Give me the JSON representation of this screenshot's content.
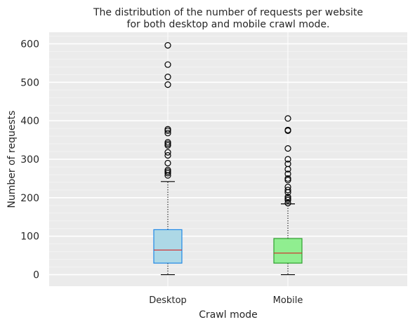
{
  "chart_data": {
    "type": "box",
    "title_lines": [
      "The distribution of the number of requests per website",
      "for both desktop and mobile crawl mode."
    ],
    "xlabel": "Crawl mode",
    "ylabel": "Number of requests",
    "ylim": [
      -30,
      630
    ],
    "yticks": [
      0,
      100,
      200,
      300,
      400,
      500,
      600
    ],
    "grid": true,
    "minor_grid": true,
    "categories": [
      "Desktop",
      "Mobile"
    ],
    "series": [
      {
        "category": "Desktop",
        "whisker_low": 0,
        "q1": 30,
        "median": 64,
        "q3": 117,
        "whisker_high": 242,
        "outliers": [
          596,
          546,
          514,
          494,
          378,
          374,
          368,
          344,
          340,
          336,
          318,
          310,
          290,
          272,
          268,
          264,
          258
        ],
        "fill": "#add8e6",
        "edge": "#1e88e5",
        "median_color": "#d62728"
      },
      {
        "category": "Mobile",
        "whisker_low": 0,
        "q1": 30,
        "median": 56,
        "q3": 94,
        "whisker_high": 184,
        "outliers": [
          406,
          376,
          374,
          328,
          300,
          288,
          274,
          262,
          250,
          246,
          228,
          220,
          214,
          202,
          198,
          194,
          186
        ],
        "fill": "#90ee90",
        "edge": "#2ca02c",
        "median_color": "#d62728"
      }
    ],
    "colors": {
      "background": "#ebebeb",
      "major_grid": "#ffffff",
      "minor_grid": "#f3f3f3",
      "text": "#262626"
    }
  }
}
